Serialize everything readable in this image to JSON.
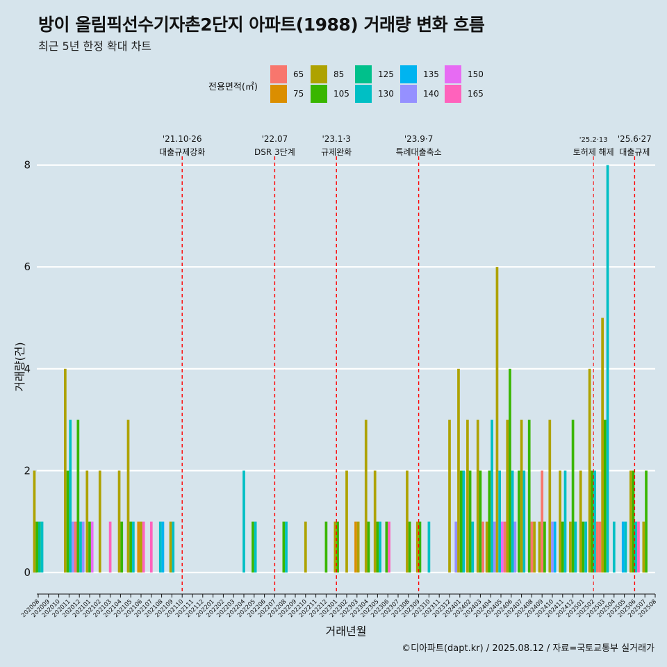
{
  "header": {
    "title": "방이 올림픽선수기자촌2단지 아파트(1988) 거래량 변화 흐름",
    "subtitle": "최근 5년 한정 확대 차트"
  },
  "legend": {
    "title": "전용면적(㎡)",
    "items": [
      {
        "label": "65",
        "color": "#F8766D"
      },
      {
        "label": "75",
        "color": "#DB8E00"
      },
      {
        "label": "85",
        "color": "#AEA200"
      },
      {
        "label": "105",
        "color": "#39B600"
      },
      {
        "label": "125",
        "color": "#00C08B"
      },
      {
        "label": "130",
        "color": "#00BFC4"
      },
      {
        "label": "135",
        "color": "#00B4F0"
      },
      {
        "label": "140",
        "color": "#9590FF"
      },
      {
        "label": "150",
        "color": "#E76BF3"
      },
      {
        "label": "165",
        "color": "#FF62BC"
      }
    ]
  },
  "caption": "©디아파트(dapt.kr) / 2025.08.12 / 자료=국토교통부 실거래가",
  "chart_data": {
    "type": "bar",
    "title": "방이 올림픽선수기자촌2단지 아파트(1988) 거래량 변화 흐름",
    "subtitle": "최근 5년 한정 확대 차트",
    "xlabel": "거래년월",
    "ylabel": "거래량(건)",
    "ylim": [
      0,
      8
    ],
    "yticks": [
      0,
      2,
      4,
      6,
      8
    ],
    "categories": [
      "202008",
      "202009",
      "202010",
      "202011",
      "202012",
      "202101",
      "202102",
      "202103",
      "202104",
      "202105",
      "202106",
      "202107",
      "202108",
      "202109",
      "202110",
      "202111",
      "202112",
      "202201",
      "202202",
      "202203",
      "202204",
      "202205",
      "202206",
      "202207",
      "202208",
      "202209",
      "202210",
      "202211",
      "202212",
      "202301",
      "202302",
      "202303",
      "202304",
      "202305",
      "202306",
      "202307",
      "202308",
      "202309",
      "202310",
      "202311",
      "202312",
      "202401",
      "202402",
      "202403",
      "202404",
      "202405",
      "202406",
      "202407",
      "202408",
      "202409",
      "202410",
      "202411",
      "202412",
      "202501",
      "202502",
      "202503",
      "202504",
      "202505",
      "202506",
      "202507",
      "202508"
    ],
    "month_data": [
      {
        "m": "202008",
        "bars": [
          {
            "a": "85",
            "v": 2
          },
          {
            "a": "105",
            "v": 1
          },
          {
            "a": "125",
            "v": 1
          },
          {
            "a": "130",
            "v": 1
          }
        ]
      },
      {
        "m": "202011",
        "bars": [
          {
            "a": "85",
            "v": 4
          },
          {
            "a": "105",
            "v": 2
          },
          {
            "a": "130",
            "v": 3
          },
          {
            "a": "140",
            "v": 1
          }
        ]
      },
      {
        "m": "202012",
        "bars": [
          {
            "a": "65",
            "v": 1
          },
          {
            "a": "105",
            "v": 3
          },
          {
            "a": "130",
            "v": 1
          },
          {
            "a": "140",
            "v": 1
          }
        ]
      },
      {
        "m": "202101",
        "bars": [
          {
            "a": "85",
            "v": 2
          },
          {
            "a": "105",
            "v": 1
          },
          {
            "a": "150",
            "v": 1
          }
        ]
      },
      {
        "m": "202102",
        "bars": [
          {
            "a": "85",
            "v": 2
          }
        ]
      },
      {
        "m": "202103",
        "bars": [
          {
            "a": "165",
            "v": 1
          }
        ]
      },
      {
        "m": "202104",
        "bars": [
          {
            "a": "85",
            "v": 2
          },
          {
            "a": "105",
            "v": 1
          }
        ]
      },
      {
        "m": "202105",
        "bars": [
          {
            "a": "85",
            "v": 3
          },
          {
            "a": "105",
            "v": 1
          },
          {
            "a": "130",
            "v": 1
          }
        ]
      },
      {
        "m": "202106",
        "bars": [
          {
            "a": "75",
            "v": 1
          },
          {
            "a": "85",
            "v": 1
          },
          {
            "a": "165",
            "v": 1
          }
        ]
      },
      {
        "m": "202107",
        "bars": [
          {
            "a": "165",
            "v": 1
          }
        ]
      },
      {
        "m": "202108",
        "bars": [
          {
            "a": "130",
            "v": 1
          },
          {
            "a": "135",
            "v": 1
          }
        ]
      },
      {
        "m": "202109",
        "bars": [
          {
            "a": "85",
            "v": 1
          },
          {
            "a": "130",
            "v": 1
          }
        ]
      },
      {
        "m": "202204",
        "bars": [
          {
            "a": "130",
            "v": 2
          }
        ]
      },
      {
        "m": "202205",
        "bars": [
          {
            "a": "105",
            "v": 1
          },
          {
            "a": "130",
            "v": 1
          }
        ]
      },
      {
        "m": "202208",
        "bars": [
          {
            "a": "105",
            "v": 1
          },
          {
            "a": "130",
            "v": 1
          }
        ]
      },
      {
        "m": "202210",
        "bars": [
          {
            "a": "85",
            "v": 1
          }
        ]
      },
      {
        "m": "202212",
        "bars": [
          {
            "a": "105",
            "v": 1
          }
        ]
      },
      {
        "m": "202301",
        "bars": [
          {
            "a": "85",
            "v": 1
          },
          {
            "a": "105",
            "v": 1
          }
        ]
      },
      {
        "m": "202302",
        "bars": [
          {
            "a": "85",
            "v": 2
          }
        ]
      },
      {
        "m": "202303",
        "bars": [
          {
            "a": "75",
            "v": 1
          },
          {
            "a": "85",
            "v": 1
          }
        ]
      },
      {
        "m": "202304",
        "bars": [
          {
            "a": "85",
            "v": 3
          },
          {
            "a": "105",
            "v": 1
          }
        ]
      },
      {
        "m": "202305",
        "bars": [
          {
            "a": "85",
            "v": 2
          },
          {
            "a": "105",
            "v": 1
          },
          {
            "a": "130",
            "v": 1
          }
        ]
      },
      {
        "m": "202306",
        "bars": [
          {
            "a": "105",
            "v": 1
          },
          {
            "a": "165",
            "v": 1
          }
        ]
      },
      {
        "m": "202308",
        "bars": [
          {
            "a": "85",
            "v": 2
          },
          {
            "a": "105",
            "v": 1
          }
        ]
      },
      {
        "m": "202309",
        "bars": [
          {
            "a": "85",
            "v": 1
          },
          {
            "a": "105",
            "v": 1
          }
        ]
      },
      {
        "m": "202310",
        "bars": [
          {
            "a": "130",
            "v": 1
          }
        ]
      },
      {
        "m": "202312",
        "bars": [
          {
            "a": "85",
            "v": 3
          }
        ]
      },
      {
        "m": "202401",
        "bars": [
          {
            "a": "140",
            "v": 1
          },
          {
            "a": "85",
            "v": 4
          },
          {
            "a": "105",
            "v": 2
          },
          {
            "a": "130",
            "v": 2
          }
        ]
      },
      {
        "m": "202402",
        "bars": [
          {
            "a": "85",
            "v": 3
          },
          {
            "a": "105",
            "v": 2
          },
          {
            "a": "130",
            "v": 1
          }
        ]
      },
      {
        "m": "202403",
        "bars": [
          {
            "a": "85",
            "v": 3
          },
          {
            "a": "105",
            "v": 2
          },
          {
            "a": "65",
            "v": 1
          }
        ]
      },
      {
        "m": "202404",
        "bars": [
          {
            "a": "85",
            "v": 1
          },
          {
            "a": "105",
            "v": 2
          },
          {
            "a": "130",
            "v": 3
          },
          {
            "a": "140",
            "v": 1
          }
        ]
      },
      {
        "m": "202405",
        "bars": [
          {
            "a": "85",
            "v": 6
          },
          {
            "a": "130",
            "v": 2
          },
          {
            "a": "150",
            "v": 1
          },
          {
            "a": "65",
            "v": 1
          }
        ]
      },
      {
        "m": "202406",
        "bars": [
          {
            "a": "85",
            "v": 3
          },
          {
            "a": "105",
            "v": 4
          },
          {
            "a": "130",
            "v": 2
          },
          {
            "a": "140",
            "v": 1
          }
        ]
      },
      {
        "m": "202407",
        "bars": [
          {
            "a": "105",
            "v": 2
          },
          {
            "a": "85",
            "v": 3
          },
          {
            "a": "130",
            "v": 2
          }
        ]
      },
      {
        "m": "202408",
        "bars": [
          {
            "a": "105",
            "v": 3
          },
          {
            "a": "65",
            "v": 1
          },
          {
            "a": "85",
            "v": 1
          }
        ]
      },
      {
        "m": "202409",
        "bars": [
          {
            "a": "85",
            "v": 1
          },
          {
            "a": "65",
            "v": 2
          },
          {
            "a": "105",
            "v": 1
          }
        ]
      },
      {
        "m": "202410",
        "bars": [
          {
            "a": "85",
            "v": 3
          },
          {
            "a": "140",
            "v": 1
          },
          {
            "a": "135",
            "v": 1
          }
        ]
      },
      {
        "m": "202411",
        "bars": [
          {
            "a": "85",
            "v": 2
          },
          {
            "a": "105",
            "v": 1
          },
          {
            "a": "130",
            "v": 2
          }
        ]
      },
      {
        "m": "202412",
        "bars": [
          {
            "a": "85",
            "v": 1
          },
          {
            "a": "105",
            "v": 3
          },
          {
            "a": "130",
            "v": 1
          }
        ]
      },
      {
        "m": "202501",
        "bars": [
          {
            "a": "85",
            "v": 2
          },
          {
            "a": "105",
            "v": 1
          },
          {
            "a": "130",
            "v": 1
          }
        ]
      },
      {
        "m": "202502",
        "bars": [
          {
            "a": "85",
            "v": 4
          },
          {
            "a": "105",
            "v": 2
          },
          {
            "a": "130",
            "v": 2
          },
          {
            "a": "65",
            "v": 1
          }
        ]
      },
      {
        "m": "202503",
        "bars": [
          {
            "a": "65",
            "v": 1
          },
          {
            "a": "85",
            "v": 5
          },
          {
            "a": "105",
            "v": 3
          },
          {
            "a": "130",
            "v": 8
          }
        ]
      },
      {
        "m": "202504",
        "bars": [
          {
            "a": "130",
            "v": 1
          }
        ]
      },
      {
        "m": "202505",
        "bars": [
          {
            "a": "135",
            "v": 1
          },
          {
            "a": "130",
            "v": 1
          }
        ]
      },
      {
        "m": "202506",
        "bars": [
          {
            "a": "85",
            "v": 2
          },
          {
            "a": "105",
            "v": 2
          },
          {
            "a": "130",
            "v": 1
          },
          {
            "a": "165",
            "v": 1
          }
        ]
      },
      {
        "m": "202507",
        "bars": [
          {
            "a": "85",
            "v": 1
          },
          {
            "a": "105",
            "v": 2
          }
        ]
      }
    ],
    "events": [
      {
        "date_label": "'21.10·26",
        "desc": "대출규제강화",
        "month": "202110",
        "small": false
      },
      {
        "date_label": "'22.07",
        "desc": "DSR 3단계",
        "month": "202207",
        "small": false
      },
      {
        "date_label": "'23.1·3",
        "desc": "규제완화",
        "month": "202301",
        "small": false
      },
      {
        "date_label": "'23.9·7",
        "desc": "특례대출축소",
        "month": "202309",
        "small": false
      },
      {
        "date_label": "'25.2·13",
        "desc": "토허제 해제",
        "month": "202502",
        "small": true
      },
      {
        "date_label": "'25.6·27",
        "desc": "대출규제",
        "month": "202506",
        "small": false
      }
    ]
  }
}
